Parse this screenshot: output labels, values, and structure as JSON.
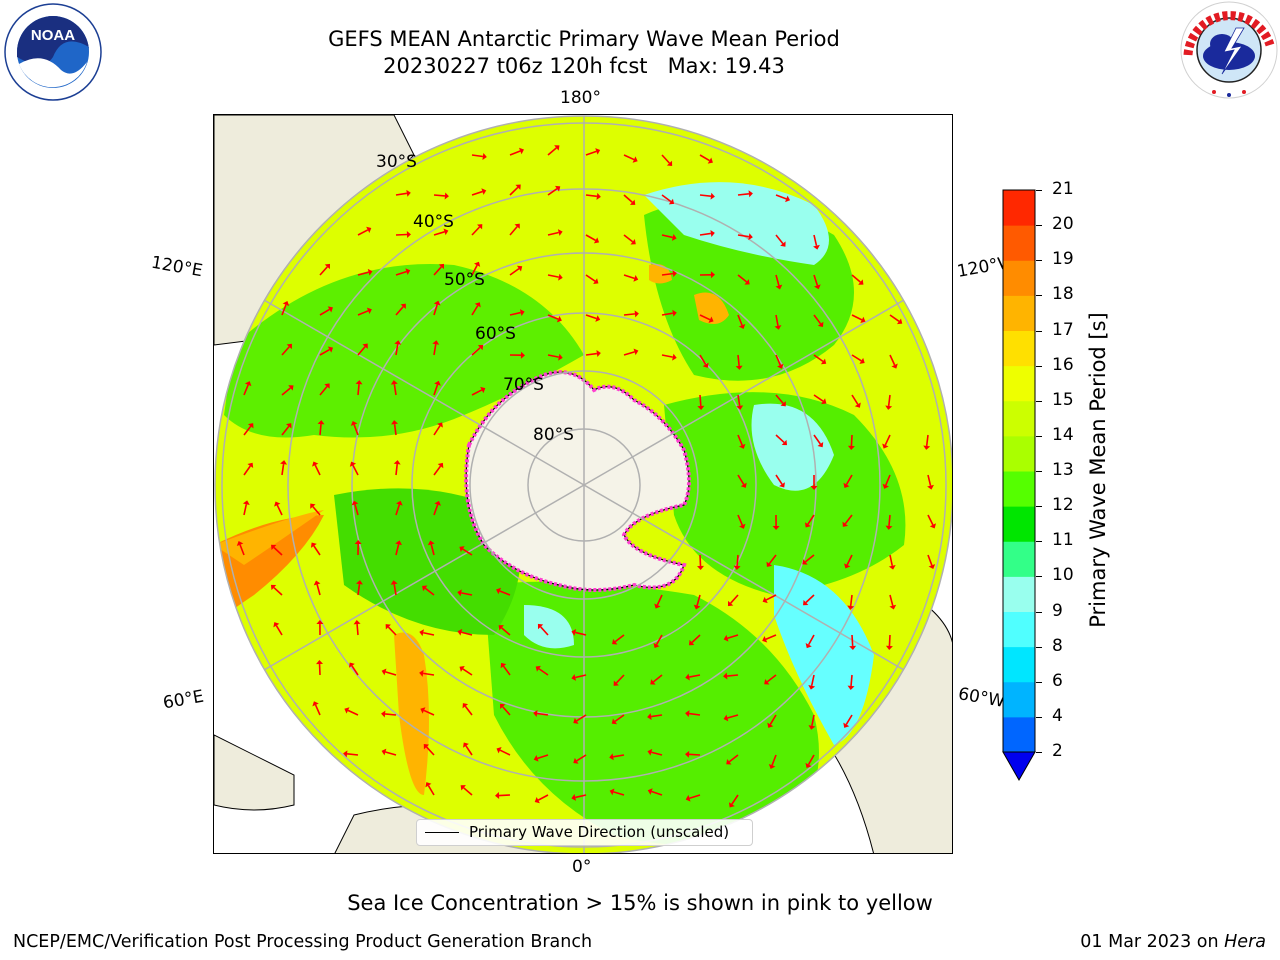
{
  "title": {
    "line1": "GEFS MEAN Antarctic Primary Wave Mean Period",
    "line2": "20230227 t06z 120h fcst   Max: 19.43"
  },
  "logos": {
    "left": "noara-logo",
    "right": "national-weather-service-logo"
  },
  "map": {
    "longitude_labels": [
      "180°",
      "120°E",
      "120°W",
      "60°E",
      "60°W",
      "0°"
    ],
    "latitude_labels": [
      "30°S",
      "40°S",
      "50°S",
      "60°S",
      "70°S",
      "80°S"
    ],
    "legend": "Primary Wave Direction (unscaled)",
    "colors": {
      "land": "#eeecdc",
      "antarctica": "#f5f3e8",
      "sea_ice": "#ff3fd0",
      "arrows": "#ff0000",
      "grid": "#b0b0b0"
    }
  },
  "colorbar": {
    "label": "Primary Wave Mean Period [s]",
    "ticks": [
      "2",
      "4",
      "6",
      "8",
      "9",
      "10",
      "11",
      "12",
      "13",
      "14",
      "15",
      "16",
      "17",
      "18",
      "19",
      "20",
      "21"
    ],
    "colors": [
      "#0066ff",
      "#00b4ff",
      "#00e6ff",
      "#50ffff",
      "#99ffee",
      "#33ff88",
      "#00e600",
      "#55ff00",
      "#aaff00",
      "#ccff00",
      "#eeff00",
      "#ffe000",
      "#ffb400",
      "#ff8c00",
      "#ff5a00",
      "#ff2800"
    ],
    "extend_color": "#0000ee"
  },
  "subtitle": "Sea Ice Concentration > 15% is shown in pink to yellow",
  "footer": {
    "left": "NCEP/EMC/Verification Post Processing Product Generation Branch",
    "right_date": "01 Mar 2023 on ",
    "right_host": "Hera"
  }
}
